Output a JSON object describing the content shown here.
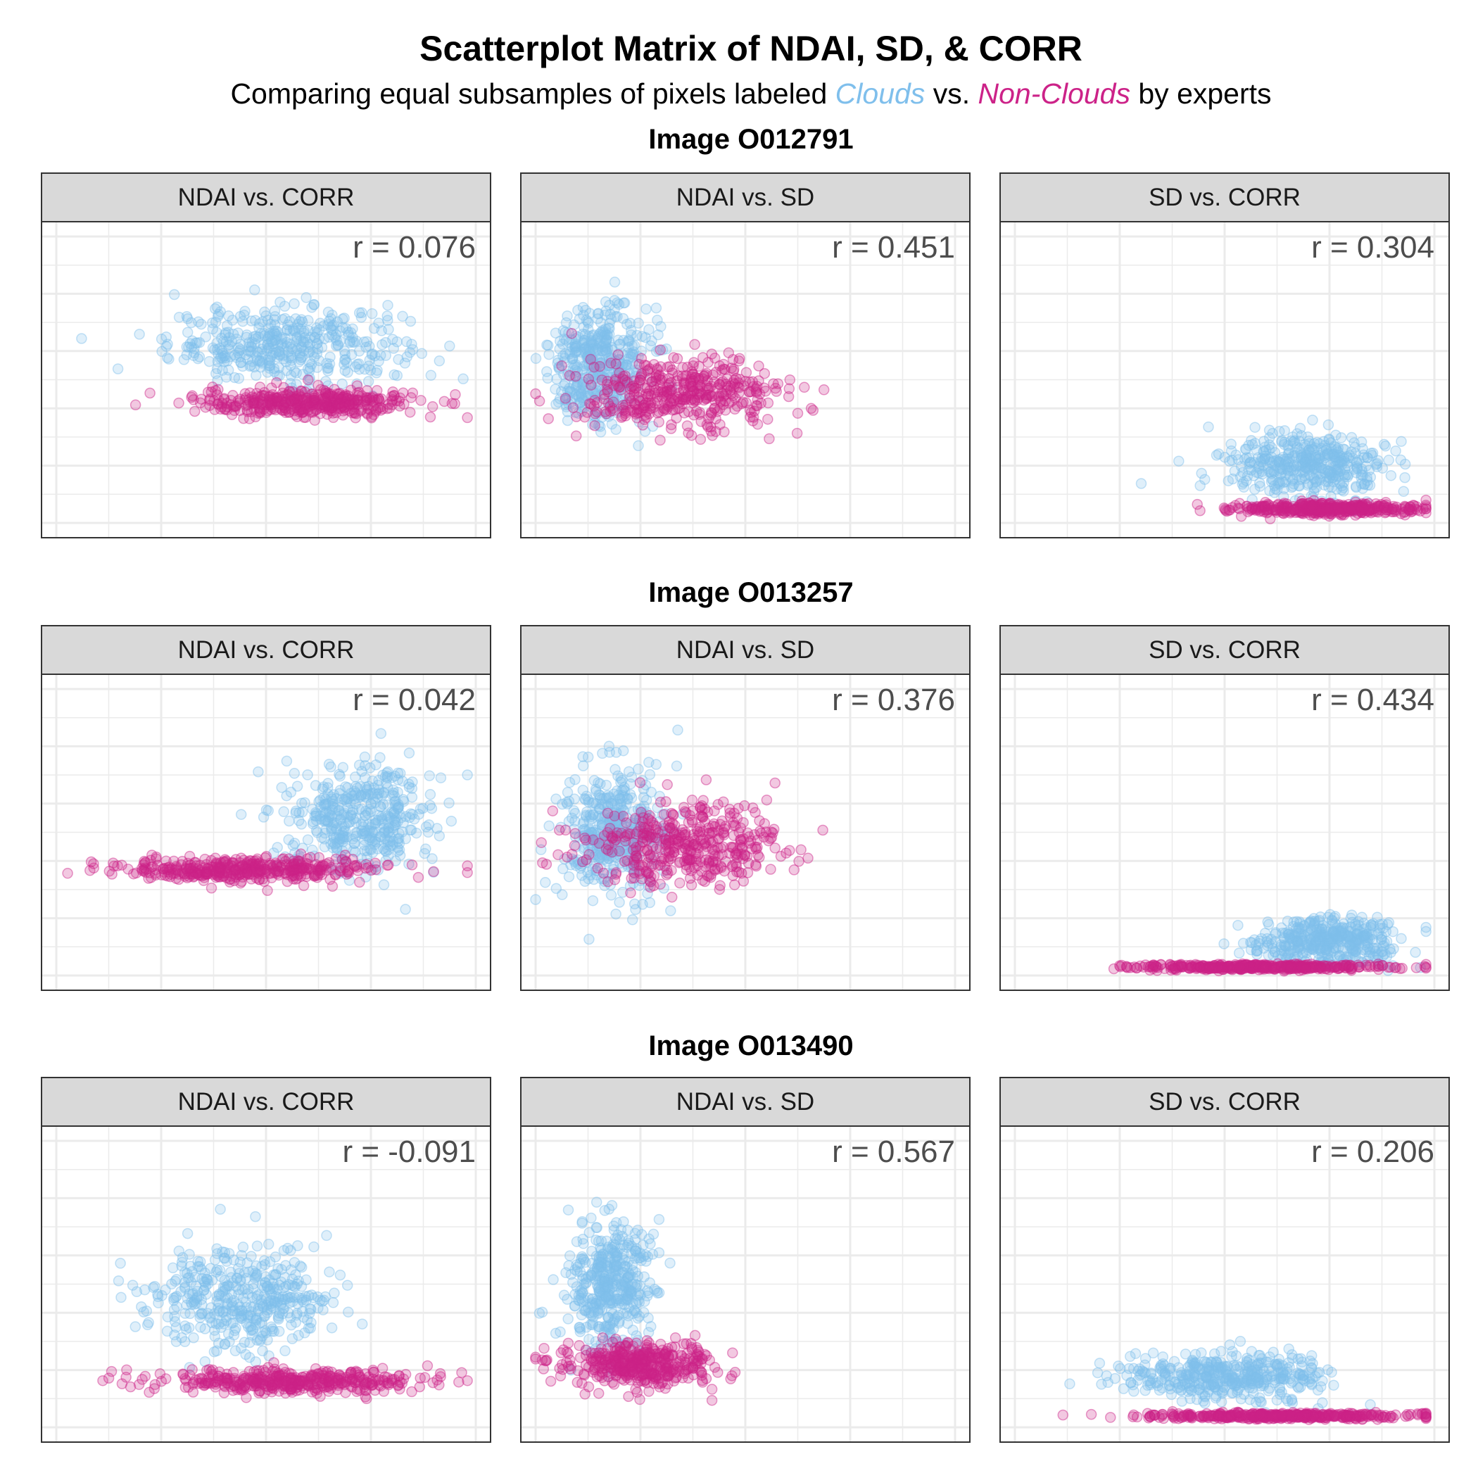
{
  "title": "Scatterplot Matrix of NDAI, SD, & CORR",
  "subtitle": {
    "prefix": "Comparing equal subsamples of pixels labeled ",
    "clouds": "Clouds",
    "middle": " vs. ",
    "non_clouds": "Non-Clouds",
    "suffix": " by experts"
  },
  "colors": {
    "clouds": "#7fbfec",
    "non_clouds": "#cc2288",
    "grid": "#ebebeb",
    "strip": "#d9d9d9"
  },
  "chart_data": [
    {
      "image": "Image O012791",
      "type": "scatter",
      "panels": [
        {
          "label": "NDAI vs. CORR",
          "r_text": "r = 0.076",
          "r": 0.076,
          "series": [
            {
              "name": "Clouds",
              "center": [
                0.55,
                0.62
              ],
              "spread": [
                0.28,
                0.13
              ]
            },
            {
              "name": "Non-Clouds",
              "center": [
                0.6,
                0.42
              ],
              "spread": [
                0.26,
                0.05
              ]
            }
          ]
        },
        {
          "label": "NDAI vs. SD",
          "r_text": "r = 0.451",
          "r": 0.451,
          "series": [
            {
              "name": "Clouds",
              "center": [
                0.15,
                0.55
              ],
              "spread": [
                0.12,
                0.2
              ]
            },
            {
              "name": "Non-Clouds",
              "center": [
                0.35,
                0.45
              ],
              "spread": [
                0.25,
                0.12
              ]
            }
          ]
        },
        {
          "label": "SD vs. CORR",
          "r_text": "r = 0.304",
          "r": 0.304,
          "series": [
            {
              "name": "Clouds",
              "center": [
                0.7,
                0.2
              ],
              "spread": [
                0.2,
                0.12
              ]
            },
            {
              "name": "Non-Clouds",
              "center": [
                0.75,
                0.05
              ],
              "spread": [
                0.22,
                0.02
              ]
            }
          ]
        }
      ]
    },
    {
      "image": "Image O013257",
      "type": "scatter",
      "panels": [
        {
          "label": "NDAI vs. CORR",
          "r_text": "r = 0.042",
          "r": 0.042,
          "series": [
            {
              "name": "Clouds",
              "center": [
                0.72,
                0.55
              ],
              "spread": [
                0.18,
                0.18
              ]
            },
            {
              "name": "Non-Clouds",
              "center": [
                0.45,
                0.37
              ],
              "spread": [
                0.3,
                0.04
              ]
            }
          ]
        },
        {
          "label": "NDAI vs. SD",
          "r_text": "r = 0.376",
          "r": 0.376,
          "series": [
            {
              "name": "Clouds",
              "center": [
                0.18,
                0.5
              ],
              "spread": [
                0.12,
                0.22
              ]
            },
            {
              "name": "Non-Clouds",
              "center": [
                0.35,
                0.45
              ],
              "spread": [
                0.25,
                0.15
              ]
            }
          ]
        },
        {
          "label": "SD vs. CORR",
          "r_text": "r = 0.434",
          "r": 0.434,
          "series": [
            {
              "name": "Clouds",
              "center": [
                0.75,
                0.12
              ],
              "spread": [
                0.18,
                0.08
              ]
            },
            {
              "name": "Non-Clouds",
              "center": [
                0.6,
                0.03
              ],
              "spread": [
                0.3,
                0.01
              ]
            }
          ]
        }
      ]
    },
    {
      "image": "Image O013490",
      "type": "scatter",
      "panels": [
        {
          "label": "NDAI vs. CORR",
          "r_text": "r = -0.091",
          "r": -0.091,
          "series": [
            {
              "name": "Clouds",
              "center": [
                0.45,
                0.45
              ],
              "spread": [
                0.22,
                0.18
              ]
            },
            {
              "name": "Non-Clouds",
              "center": [
                0.55,
                0.16
              ],
              "spread": [
                0.3,
                0.04
              ]
            }
          ]
        },
        {
          "label": "NDAI vs. SD",
          "r_text": "r = 0.567",
          "r": 0.567,
          "series": [
            {
              "name": "Clouds",
              "center": [
                0.18,
                0.5
              ],
              "spread": [
                0.1,
                0.22
              ]
            },
            {
              "name": "Non-Clouds",
              "center": [
                0.25,
                0.22
              ],
              "spread": [
                0.18,
                0.08
              ]
            }
          ]
        },
        {
          "label": "SD vs. CORR",
          "r_text": "r = 0.206",
          "r": 0.206,
          "series": [
            {
              "name": "Clouds",
              "center": [
                0.5,
                0.18
              ],
              "spread": [
                0.25,
                0.08
              ]
            },
            {
              "name": "Non-Clouds",
              "center": [
                0.65,
                0.04
              ],
              "spread": [
                0.3,
                0.01
              ]
            }
          ]
        }
      ]
    }
  ]
}
